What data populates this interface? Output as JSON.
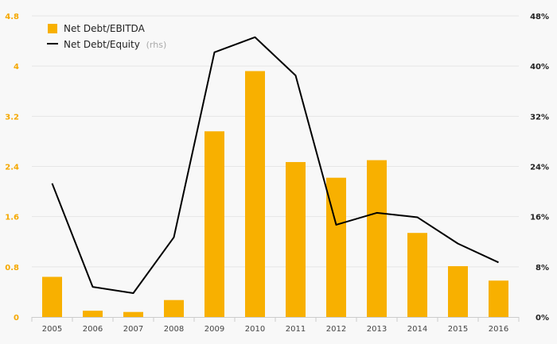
{
  "chart_data": {
    "type": "bar",
    "categories": [
      "2005",
      "2006",
      "2007",
      "2008",
      "2009",
      "2010",
      "2011",
      "2012",
      "2013",
      "2014",
      "2015",
      "2016"
    ],
    "series": [
      {
        "name": "Net Debt/EBITDA",
        "type": "bar",
        "axis": "left",
        "color": "#f8b000",
        "values": [
          0.64,
          0.1,
          0.08,
          0.27,
          2.96,
          3.92,
          2.47,
          2.22,
          2.5,
          1.34,
          0.81,
          0.58
        ]
      },
      {
        "name": "Net Debt/Equity",
        "type": "line",
        "axis": "right",
        "color": "#000000",
        "values": [
          21.3,
          4.8,
          3.8,
          12.7,
          42.2,
          44.6,
          38.5,
          14.7,
          16.6,
          15.9,
          11.7,
          8.7
        ]
      }
    ],
    "legend_note": "(rhs)",
    "y_left": {
      "min": 0,
      "max": 4.8,
      "ticks": [
        "0",
        "0.8",
        "1.6",
        "2.4",
        "3.2",
        "4",
        "4.8"
      ],
      "color": "#f5a800"
    },
    "y_right": {
      "min": 0,
      "max": 48,
      "ticks": [
        "0%",
        "8%",
        "16%",
        "24%",
        "32%",
        "40%",
        "48%"
      ]
    },
    "grid": true,
    "legend_position": "top-left"
  }
}
